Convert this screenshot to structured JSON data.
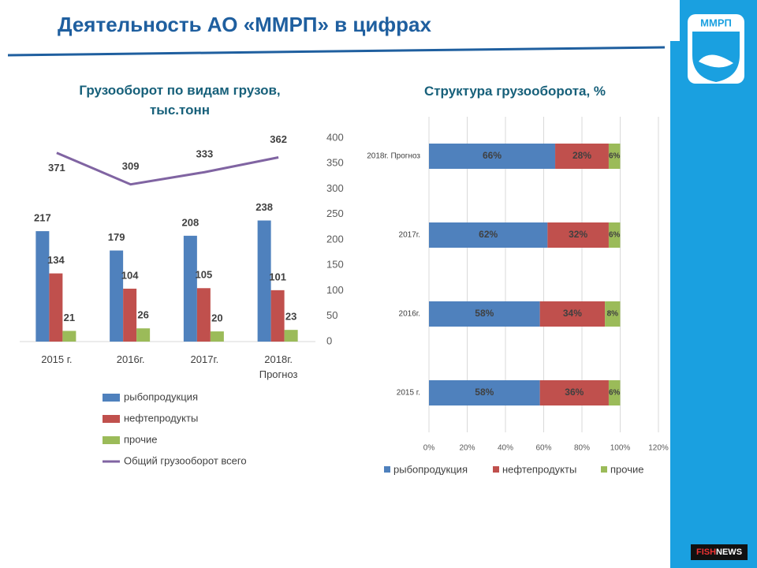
{
  "header": {
    "title": "Деятельность АО «ММРП» в цифрах",
    "logo": "ММРП"
  },
  "watermark": [
    "FISH",
    "NEWS"
  ],
  "chart_data": [
    {
      "type": "bar",
      "title": "Грузооборот по видам грузов, тыс.тонн",
      "categories": [
        "2015 г.",
        "2016г.",
        "2017г.",
        "2018г. Прогноз"
      ],
      "series": [
        {
          "name": "рыбопродукция",
          "color": "#4f81bd",
          "values": [
            217,
            179,
            208,
            238
          ]
        },
        {
          "name": "нефтепродукты",
          "color": "#c0504d",
          "values": [
            134,
            104,
            105,
            101
          ]
        },
        {
          "name": "прочие",
          "color": "#9bbb59",
          "values": [
            21,
            26,
            20,
            23
          ]
        },
        {
          "name": "Общий грузооборот всего",
          "color": "#8064a2",
          "type": "line",
          "values": [
            371,
            309,
            333,
            362
          ]
        }
      ],
      "ylim": [
        0,
        400
      ],
      "yticks": [
        0,
        50,
        100,
        150,
        200,
        250,
        300,
        350,
        400
      ],
      "axis_side": "right",
      "grid": false,
      "legend": "bottom"
    },
    {
      "type": "stacked-barh",
      "title": "Структура грузооборота, %",
      "categories": [
        "2018г. Прогноз",
        "2017г.",
        "2016г.",
        "2015 г."
      ],
      "series": [
        {
          "name": "рыбопродукция",
          "color": "#4f81bd",
          "values": [
            66,
            62,
            58,
            58
          ],
          "value_labels": [
            "66%",
            "62%",
            "58%",
            "58%"
          ]
        },
        {
          "name": "нефтепродукты",
          "color": "#c0504d",
          "values": [
            28,
            32,
            34,
            36
          ],
          "value_labels": [
            "28%",
            "32%",
            "34%",
            "36%"
          ]
        },
        {
          "name": "прочие",
          "color": "#9bbb59",
          "values": [
            6,
            6,
            8,
            6
          ],
          "value_labels": [
            "6%",
            "6%",
            "8%",
            "6%"
          ]
        }
      ],
      "xlim": [
        0,
        120
      ],
      "xticks": [
        {
          "value": 0,
          "label": "0%"
        },
        {
          "value": 20,
          "label": "20%"
        },
        {
          "value": 40,
          "label": "40%"
        },
        {
          "value": 60,
          "label": "60%"
        },
        {
          "value": 80,
          "label": "80%"
        },
        {
          "value": 100,
          "label": "100%"
        },
        {
          "value": 120,
          "label": "120%"
        }
      ],
      "grid": true,
      "legend": "bottom"
    }
  ]
}
